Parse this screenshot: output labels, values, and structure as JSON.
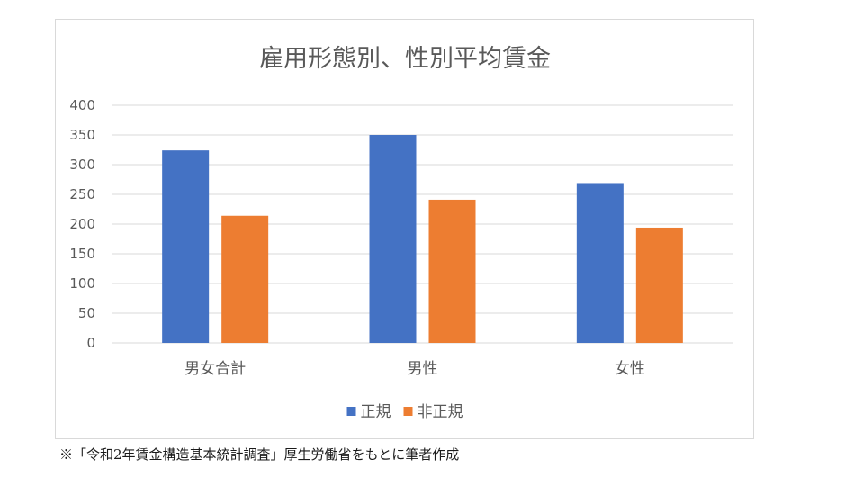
{
  "chart_data": {
    "type": "bar",
    "title": "雇用形態別、性別平均賃金",
    "categories": [
      "男女合計",
      "男性",
      "女性"
    ],
    "series": [
      {
        "name": "正規",
        "color": "#4472c4",
        "values": [
          324,
          350,
          269
        ]
      },
      {
        "name": "非正規",
        "color": "#ed7d31",
        "values": [
          214,
          241,
          194
        ]
      }
    ],
    "ylim": [
      0,
      400
    ],
    "yticks": [
      0,
      50,
      100,
      150,
      200,
      250,
      300,
      350,
      400
    ],
    "grid": true,
    "legend_position": "bottom"
  },
  "source_note": "※「令和2年賃金構造基本統計調査」厚生労働省をもとに筆者作成"
}
